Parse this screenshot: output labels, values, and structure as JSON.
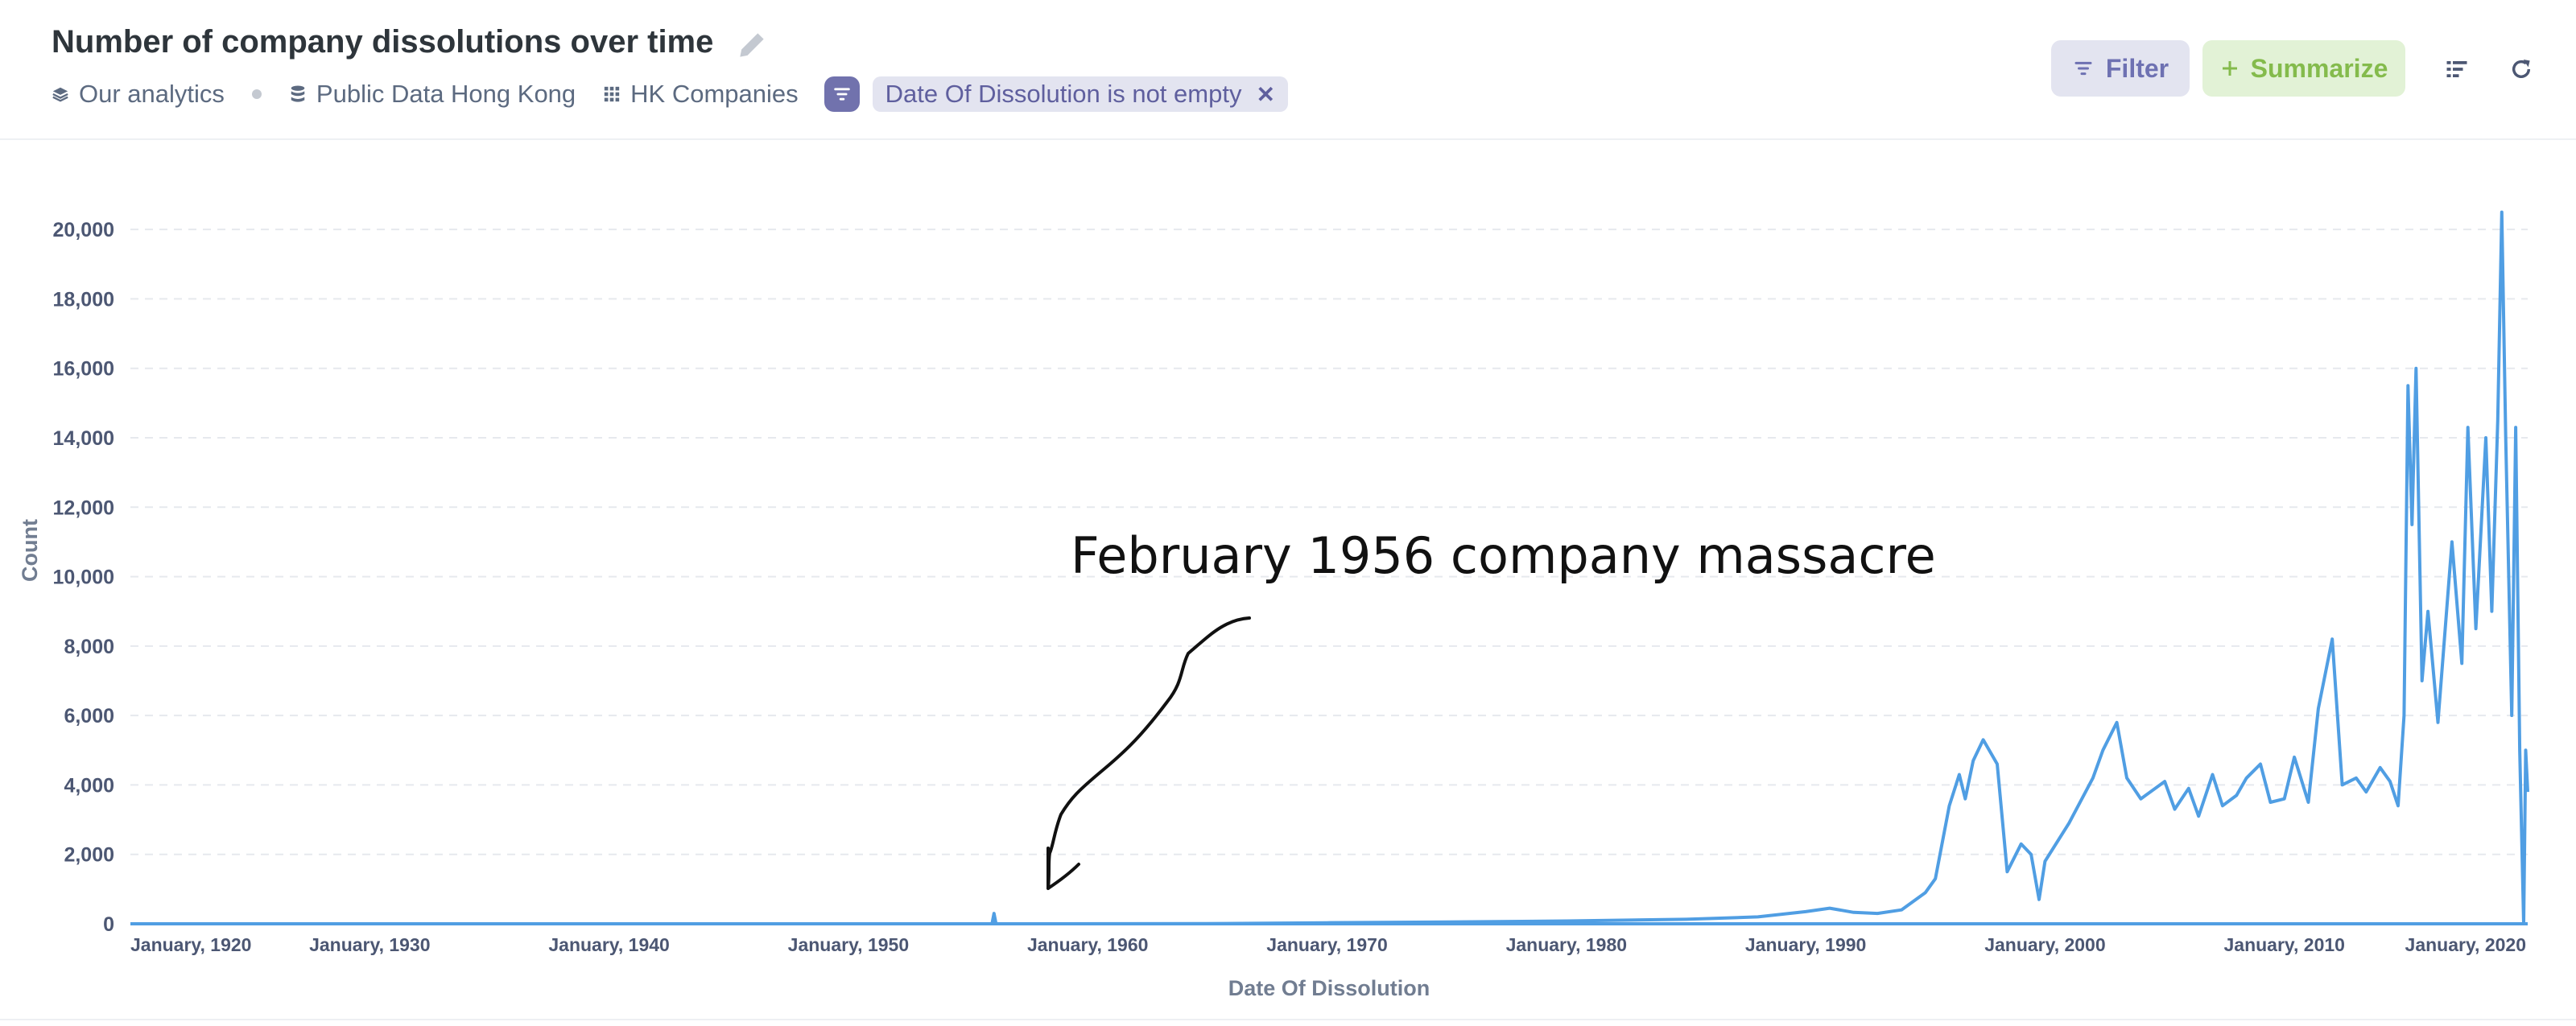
{
  "header": {
    "title": "Number of company dissolutions over time",
    "breadcrumbs": {
      "collection": "Our analytics",
      "database": "Public Data Hong Kong",
      "table": "HK Companies"
    },
    "filter_pill": "Date Of Dissolution is not empty",
    "buttons": {
      "filter": "Filter",
      "summarize": "Summarize"
    },
    "icons": [
      "pencil-icon",
      "layers-icon",
      "database-icon",
      "table-grid-icon",
      "filter-icon",
      "close-icon",
      "plus-icon",
      "list-icon",
      "refresh-icon"
    ]
  },
  "colors": {
    "line": "#509ee3",
    "filter_accent": "#7172ad",
    "summarize_accent": "#84bb4c",
    "text": "#4c5773"
  },
  "chart_data": {
    "type": "line",
    "xlabel": "Date Of Dissolution",
    "ylabel": "Count",
    "x_ticks": [
      "January, 1920",
      "January, 1930",
      "January, 1940",
      "January, 1950",
      "January, 1960",
      "January, 1970",
      "January, 1980",
      "January, 1990",
      "January, 2000",
      "January, 2010",
      "January, 2020"
    ],
    "y_ticks": [
      "0",
      "2,000",
      "4,000",
      "6,000",
      "8,000",
      "10,000",
      "12,000",
      "14,000",
      "16,000",
      "18,000",
      "20,000"
    ],
    "xlim": [
      "1920-01",
      "2020-03"
    ],
    "ylim": [
      0,
      21000
    ],
    "grid": "horizontal dashed",
    "series": [
      {
        "points": [
          [
            "1920-01",
            0
          ],
          [
            "1956-01",
            0
          ],
          [
            "1956-02",
            300
          ],
          [
            "1956-03",
            0
          ],
          [
            "1965-01",
            5
          ],
          [
            "1970-01",
            30
          ],
          [
            "1975-01",
            50
          ],
          [
            "1980-01",
            80
          ],
          [
            "1985-01",
            130
          ],
          [
            "1988-01",
            200
          ],
          [
            "1990-01",
            350
          ],
          [
            "1991-01",
            450
          ],
          [
            "1992-01",
            330
          ],
          [
            "1993-01",
            300
          ],
          [
            "1994-01",
            400
          ],
          [
            "1995-01",
            900
          ],
          [
            "1995-06",
            1300
          ],
          [
            "1996-01",
            3400
          ],
          [
            "1996-06",
            4300
          ],
          [
            "1996-09",
            3600
          ],
          [
            "1997-01",
            4700
          ],
          [
            "1997-06",
            5300
          ],
          [
            "1998-01",
            4600
          ],
          [
            "1998-06",
            1500
          ],
          [
            "1999-01",
            2300
          ],
          [
            "1999-06",
            2000
          ],
          [
            "1999-10",
            700
          ],
          [
            "2000-01",
            1800
          ],
          [
            "2001-01",
            2900
          ],
          [
            "2002-01",
            4200
          ],
          [
            "2002-06",
            5000
          ],
          [
            "2003-01",
            5800
          ],
          [
            "2003-06",
            4200
          ],
          [
            "2004-01",
            3600
          ],
          [
            "2005-01",
            4100
          ],
          [
            "2005-06",
            3300
          ],
          [
            "2006-01",
            3900
          ],
          [
            "2006-06",
            3100
          ],
          [
            "2007-01",
            4300
          ],
          [
            "2007-06",
            3400
          ],
          [
            "2008-01",
            3700
          ],
          [
            "2008-06",
            4200
          ],
          [
            "2009-01",
            4600
          ],
          [
            "2009-06",
            3500
          ],
          [
            "2010-01",
            3600
          ],
          [
            "2010-06",
            4800
          ],
          [
            "2011-01",
            3500
          ],
          [
            "2011-06",
            6200
          ],
          [
            "2012-01",
            8200
          ],
          [
            "2012-06",
            4000
          ],
          [
            "2013-01",
            4200
          ],
          [
            "2013-06",
            3800
          ],
          [
            "2014-01",
            4500
          ],
          [
            "2014-06",
            4100
          ],
          [
            "2014-10",
            3400
          ],
          [
            "2015-01",
            6000
          ],
          [
            "2015-03",
            15500
          ],
          [
            "2015-05",
            11500
          ],
          [
            "2015-07",
            16000
          ],
          [
            "2015-10",
            7000
          ],
          [
            "2016-01",
            9000
          ],
          [
            "2016-06",
            5800
          ],
          [
            "2017-01",
            11000
          ],
          [
            "2017-06",
            7500
          ],
          [
            "2017-09",
            14300
          ],
          [
            "2018-01",
            8500
          ],
          [
            "2018-06",
            14000
          ],
          [
            "2018-09",
            9000
          ],
          [
            "2018-12",
            14500
          ],
          [
            "2019-02",
            20500
          ],
          [
            "2019-04",
            14000
          ],
          [
            "2019-07",
            6000
          ],
          [
            "2019-09",
            14300
          ],
          [
            "2019-11",
            5000
          ],
          [
            "2020-01",
            0
          ],
          [
            "2020-02",
            5000
          ],
          [
            "2020-03",
            3800
          ]
        ]
      }
    ],
    "annotation": {
      "text": "February 1956 company massacre",
      "target": [
        "1956-02",
        300
      ]
    }
  }
}
